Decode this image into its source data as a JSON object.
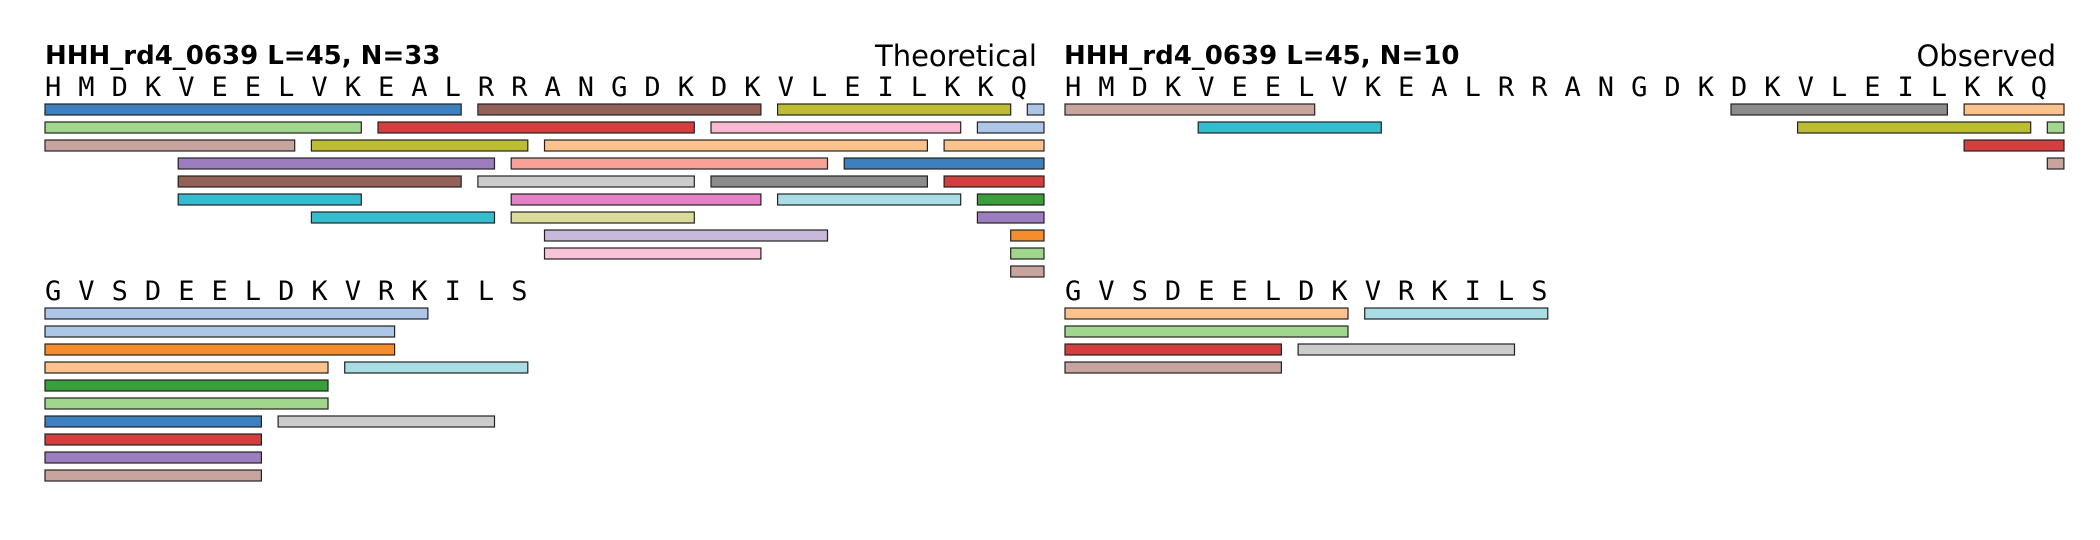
{
  "panels": [
    {
      "id": "theoretical",
      "title": "HHH_rd4_0639  L=45, N=33",
      "kind": "Theoretical",
      "rows": [
        {
          "sequence": "HMDKVEELVKEALRRANGDKDKVLEILKKQ",
          "lanes": [
            [
              {
                "start": 1,
                "end": 25,
                "color": "#3e7fbd"
              },
              {
                "start": 27,
                "end": 43,
                "color": "#946159"
              },
              {
                "start": 45,
                "end": 58,
                "color": "#bcbd32"
              },
              {
                "start": 60,
                "end": 60,
                "color": "#adc6e8"
              }
            ],
            [
              {
                "start": 1,
                "end": 19,
                "color": "#a1d78d"
              },
              {
                "start": 21,
                "end": 39,
                "color": "#d33f3f"
              },
              {
                "start": 41,
                "end": 55,
                "color": "#f8b8d2"
              },
              {
                "start": 57,
                "end": 60,
                "color": "#adc6e8"
              }
            ],
            [
              {
                "start": 1,
                "end": 15,
                "color": "#c8a49f"
              },
              {
                "start": 17,
                "end": 29,
                "color": "#bcbd32"
              },
              {
                "start": 31,
                "end": 53,
                "color": "#fcc28e"
              },
              {
                "start": 55,
                "end": 60,
                "color": "#fcc28e"
              }
            ],
            [
              {
                "start": 9,
                "end": 27,
                "color": "#9c7dc0"
              },
              {
                "start": 29,
                "end": 47,
                "color": "#f7a199"
              },
              {
                "start": 49,
                "end": 60,
                "color": "#3e7fbd"
              }
            ],
            [
              {
                "start": 9,
                "end": 25,
                "color": "#946159"
              },
              {
                "start": 27,
                "end": 39,
                "color": "#cccccc"
              },
              {
                "start": 41,
                "end": 53,
                "color": "#8c8c8c"
              },
              {
                "start": 55,
                "end": 60,
                "color": "#d33f3f"
              }
            ],
            [
              {
                "start": 9,
                "end": 19,
                "color": "#35bccf"
              },
              {
                "start": 29,
                "end": 43,
                "color": "#e67fc5"
              },
              {
                "start": 45,
                "end": 55,
                "color": "#a8dde6"
              },
              {
                "start": 57,
                "end": 60,
                "color": "#3a9e3a"
              }
            ],
            [
              {
                "start": 17,
                "end": 27,
                "color": "#35bccf"
              },
              {
                "start": 29,
                "end": 39,
                "color": "#dcdc9a"
              },
              {
                "start": 57,
                "end": 60,
                "color": "#9c7dc0"
              }
            ],
            [
              {
                "start": 31,
                "end": 47,
                "color": "#c8b8da"
              },
              {
                "start": 59,
                "end": 60,
                "color": "#f58d2c"
              }
            ],
            [
              {
                "start": 31,
                "end": 43,
                "color": "#f8c4d9"
              },
              {
                "start": 59,
                "end": 60,
                "color": "#a1d78d"
              }
            ],
            [
              {
                "start": 59,
                "end": 60,
                "color": "#c8a49f"
              }
            ]
          ]
        },
        {
          "sequence": "GVSDEELDKVRKILS",
          "lanes": [
            [
              {
                "start": 1,
                "end": 23,
                "color": "#adc6e8"
              }
            ],
            [
              {
                "start": 1,
                "end": 21,
                "color": "#adc6e8"
              }
            ],
            [
              {
                "start": 1,
                "end": 21,
                "color": "#f58d2c"
              }
            ],
            [
              {
                "start": 1,
                "end": 17,
                "color": "#fcc28e"
              },
              {
                "start": 19,
                "end": 29,
                "color": "#a8dde6"
              }
            ],
            [
              {
                "start": 1,
                "end": 17,
                "color": "#3a9e3a"
              }
            ],
            [
              {
                "start": 1,
                "end": 17,
                "color": "#a1d78d"
              }
            ],
            [
              {
                "start": 1,
                "end": 13,
                "color": "#3e7fbd"
              },
              {
                "start": 15,
                "end": 27,
                "color": "#cccccc"
              }
            ],
            [
              {
                "start": 1,
                "end": 13,
                "color": "#d33f3f"
              }
            ],
            [
              {
                "start": 1,
                "end": 13,
                "color": "#9c7dc0"
              }
            ],
            [
              {
                "start": 1,
                "end": 13,
                "color": "#c8a49f"
              }
            ]
          ]
        }
      ]
    },
    {
      "id": "observed",
      "title": "HHH_rd4_0639  L=45, N=10",
      "kind": "Observed",
      "rows": [
        {
          "sequence": "HMDKVEELVKEALRRANGDKDKVLEILKKQ",
          "lanes": [
            [
              {
                "start": 1,
                "end": 15,
                "color": "#c8a49f"
              },
              {
                "start": 41,
                "end": 53,
                "color": "#8c8c8c"
              },
              {
                "start": 55,
                "end": 60,
                "color": "#fcc28e"
              }
            ],
            [
              {
                "start": 9,
                "end": 19,
                "color": "#35bccf"
              },
              {
                "start": 45,
                "end": 58,
                "color": "#bcbd32"
              },
              {
                "start": 60,
                "end": 60,
                "color": "#a1d78d"
              }
            ],
            [
              {
                "start": 55,
                "end": 60,
                "color": "#d33f3f"
              }
            ],
            [
              {
                "start": 60,
                "end": 60,
                "color": "#c8a49f"
              }
            ]
          ]
        },
        {
          "sequence": "GVSDEELDKVRKILS",
          "lanes": [
            [
              {
                "start": 1,
                "end": 17,
                "color": "#fcc28e"
              },
              {
                "start": 19,
                "end": 29,
                "color": "#a8dde6"
              }
            ],
            [
              {
                "start": 1,
                "end": 17,
                "color": "#a1d78d"
              }
            ],
            [
              {
                "start": 1,
                "end": 13,
                "color": "#d33f3f"
              },
              {
                "start": 15,
                "end": 27,
                "color": "#cccccc"
              }
            ],
            [
              {
                "start": 1,
                "end": 13,
                "color": "#c8a49f"
              }
            ]
          ]
        }
      ]
    }
  ]
}
